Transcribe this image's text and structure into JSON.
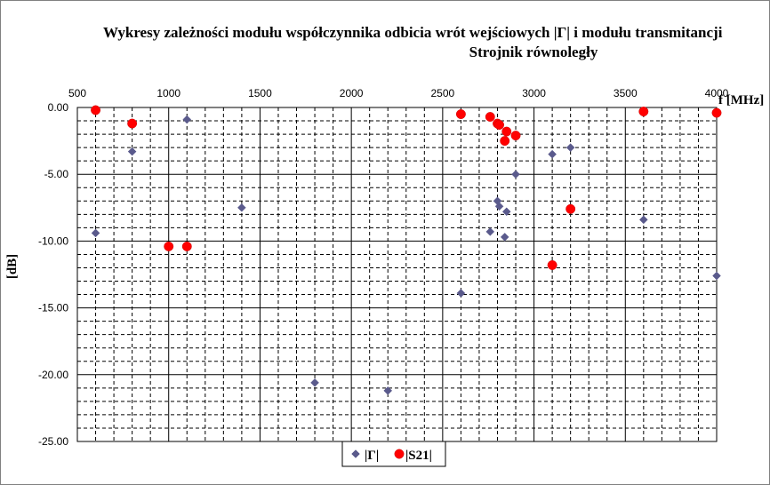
{
  "chart_data": {
    "type": "scatter",
    "title_line1": "Wykresy zależności modułu współczynnika odbicia wrót wejściowych |Γ| i modułu transmitancji",
    "title_line2": "Strojnik równoległy",
    "xlabel": "f [MHz]",
    "ylabel": "[dB]",
    "xlim": [
      500,
      4000
    ],
    "ylim": [
      -25,
      0
    ],
    "x_ticks": [
      "500",
      "1000",
      "1500",
      "2000",
      "2500",
      "3000",
      "3500",
      "4000"
    ],
    "y_ticks": [
      "0.00",
      "-5.00",
      "-10.00",
      "-15.00",
      "-20.00",
      "-25.00"
    ],
    "x_axis_position": "top",
    "grid": true,
    "legend_position": "bottom-center",
    "series": [
      {
        "name": "|Γ|",
        "marker": "diamond",
        "color": "#5a5a8c",
        "points": [
          [
            600,
            -9.4
          ],
          [
            800,
            -3.3
          ],
          [
            1100,
            -0.9
          ],
          [
            1400,
            -7.5
          ],
          [
            1800,
            -20.6
          ],
          [
            2200,
            -21.2
          ],
          [
            2600,
            -13.9
          ],
          [
            2760,
            -9.3
          ],
          [
            2800,
            -7.0
          ],
          [
            2810,
            -7.4
          ],
          [
            2840,
            -9.7
          ],
          [
            2850,
            -7.8
          ],
          [
            2900,
            -5.0
          ],
          [
            3100,
            -3.5
          ],
          [
            3200,
            -3.0
          ],
          [
            3600,
            -8.4
          ],
          [
            4000,
            -12.6
          ]
        ]
      },
      {
        "name": "|S21|",
        "marker": "circle",
        "color": "#ff0000",
        "points": [
          [
            600,
            -0.2
          ],
          [
            800,
            -1.2
          ],
          [
            1000,
            -10.4
          ],
          [
            1100,
            -10.4
          ],
          [
            2600,
            -0.5
          ],
          [
            2760,
            -0.7
          ],
          [
            2800,
            -1.2
          ],
          [
            2810,
            -1.3
          ],
          [
            2840,
            -2.5
          ],
          [
            2850,
            -1.8
          ],
          [
            2900,
            -2.1
          ],
          [
            3100,
            -11.8
          ],
          [
            3200,
            -7.6
          ],
          [
            3600,
            -0.3
          ],
          [
            4000,
            -0.4
          ]
        ]
      }
    ]
  }
}
